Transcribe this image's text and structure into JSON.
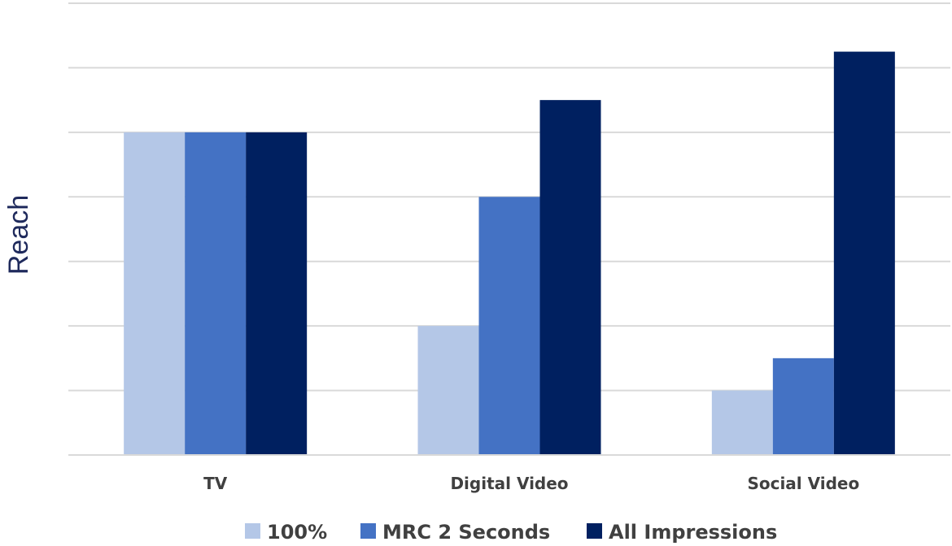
{
  "chart_data": {
    "type": "bar",
    "title": "",
    "xlabel": "",
    "ylabel": "Reach",
    "categories": [
      "TV",
      "Digital Video",
      "Social Video"
    ],
    "series": [
      {
        "name": "100%",
        "values": [
          5.0,
          2.0,
          1.0
        ],
        "color": "#b4c7e7"
      },
      {
        "name": "MRC 2 Seconds",
        "values": [
          5.0,
          4.0,
          1.5
        ],
        "color": "#4472c4"
      },
      {
        "name": "All Impressions",
        "values": [
          5.0,
          5.5,
          6.25
        ],
        "color": "#002060"
      }
    ],
    "ylim": [
      0,
      7
    ],
    "y_ticks_labeled": false,
    "grid": true,
    "legend_position": "bottom"
  }
}
